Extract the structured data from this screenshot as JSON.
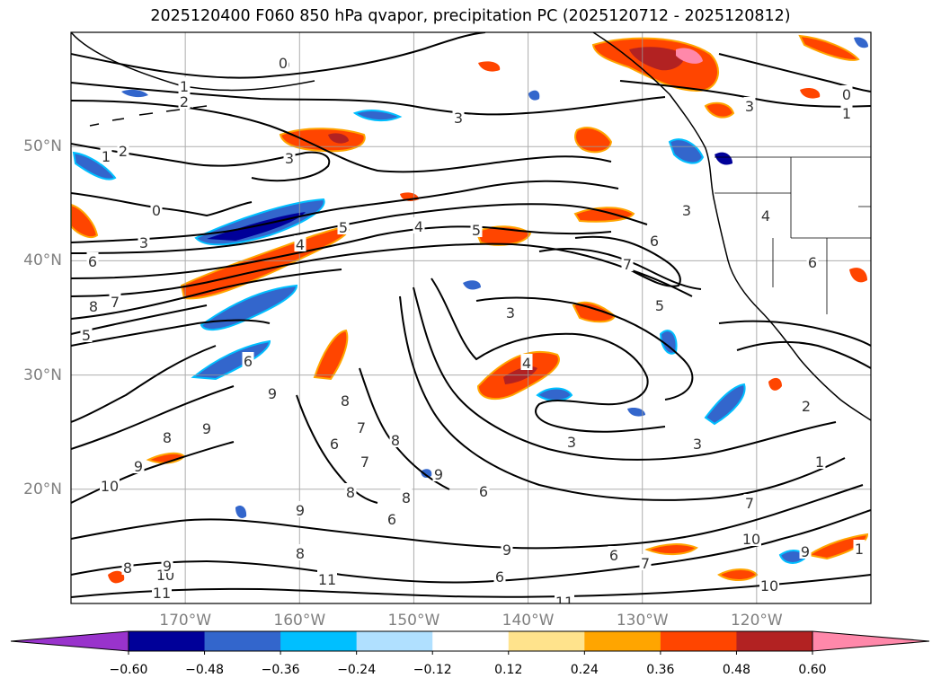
{
  "title": "2025120400 F060 850 hPa qvapor, precipitation PC (2025120712 - 2025120812)",
  "map": {
    "lat_labels": [
      {
        "text": "50°N",
        "lat": 50
      },
      {
        "text": "40°N",
        "lat": 40
      },
      {
        "text": "30°N",
        "lat": 30
      },
      {
        "text": "20°N",
        "lat": 20
      }
    ],
    "lon_labels": [
      {
        "text": "170°W",
        "lon": -170
      },
      {
        "text": "160°W",
        "lon": -160
      },
      {
        "text": "150°W",
        "lon": -150
      },
      {
        "text": "140°W",
        "lon": -140
      },
      {
        "text": "130°W",
        "lon": -130
      },
      {
        "text": "120°W",
        "lon": -120
      }
    ],
    "extent": {
      "lon_min": -180,
      "lon_max": -110,
      "lat_min": 10,
      "lat_max": 60
    },
    "gridlines": true,
    "contour_labels": [
      "0",
      "1",
      "2",
      "3",
      "4",
      "5",
      "6",
      "7",
      "8",
      "9",
      "10",
      "11"
    ]
  },
  "colorbar": {
    "ticks": [
      "−0.60",
      "−0.48",
      "−0.36",
      "−0.24",
      "−0.12",
      "0.12",
      "0.24",
      "0.36",
      "0.48",
      "0.60"
    ],
    "colors": [
      "#9933cc",
      "#000099",
      "#3366cc",
      "#00bfff",
      "#b0e0ff",
      "#ffffff",
      "#ffe38c",
      "#ffa500",
      "#ff4500",
      "#b22222",
      "#ff88aa"
    ],
    "extend": "both"
  }
}
